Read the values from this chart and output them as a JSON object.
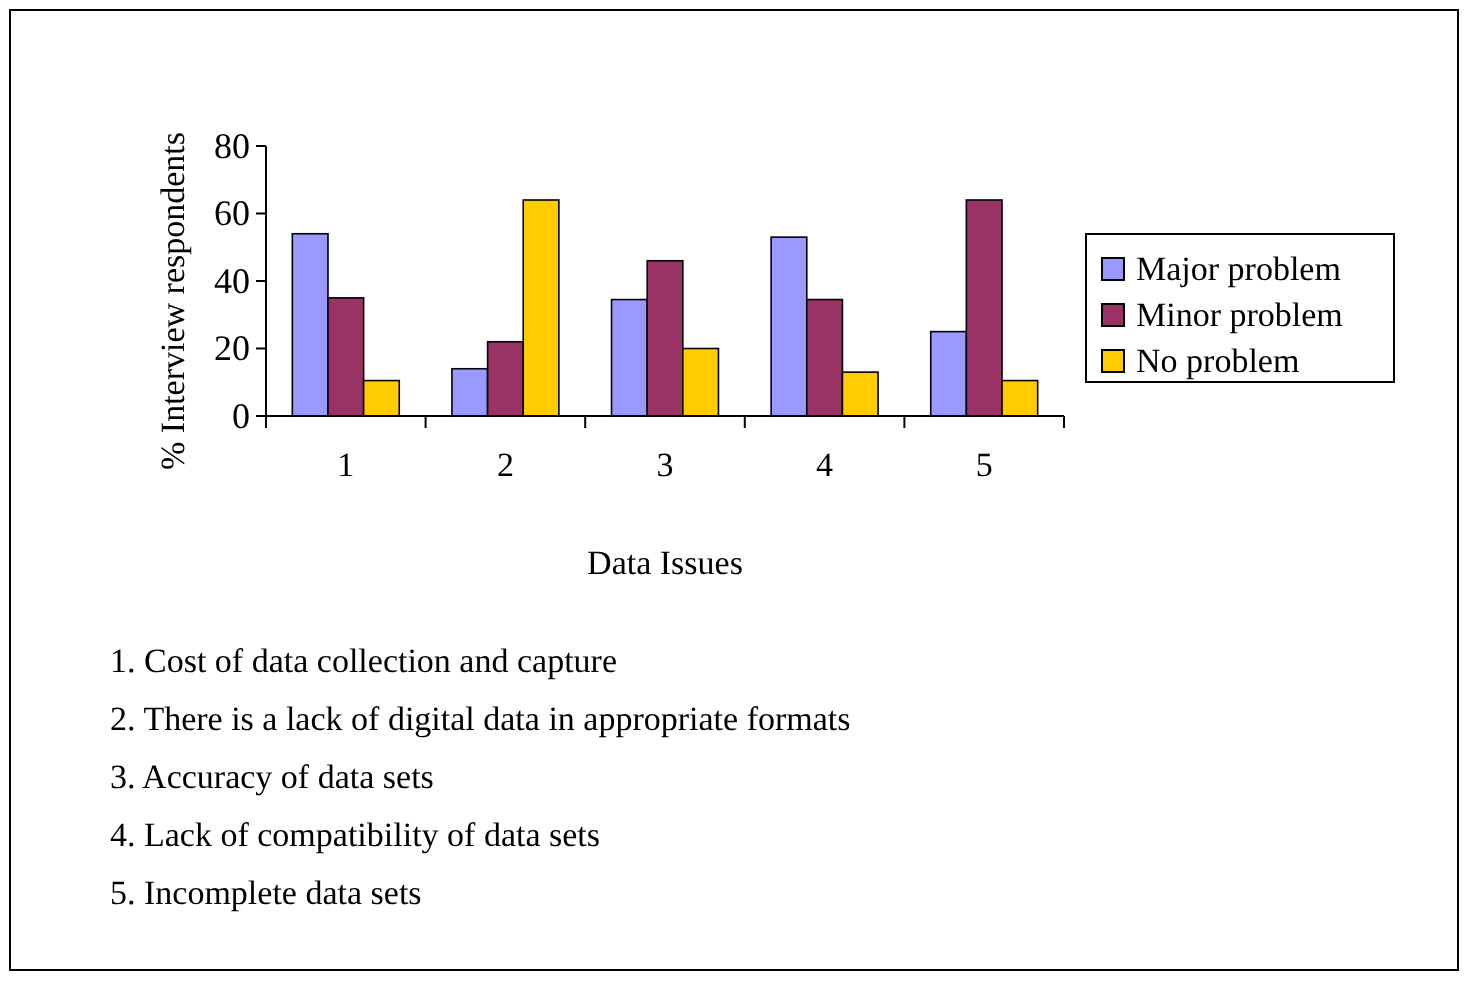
{
  "chart_data": {
    "type": "bar",
    "xlabel": "Data Issues",
    "ylabel": "% Interview respondents",
    "categories": [
      "1",
      "2",
      "3",
      "4",
      "5"
    ],
    "series": [
      {
        "name": "Major problem",
        "color": "#9999ff",
        "values": [
          54,
          14,
          34.5,
          53,
          25
        ]
      },
      {
        "name": "Minor problem",
        "color": "#993366",
        "values": [
          35,
          22,
          46,
          34.5,
          64
        ]
      },
      {
        "name": "No problem",
        "color": "#ffcc00",
        "values": [
          10.5,
          64,
          20,
          13,
          10.5
        ]
      }
    ],
    "ylim": [
      0,
      80
    ],
    "yticks": [
      0,
      20,
      40,
      60,
      80
    ],
    "legend": "right",
    "annotations": [
      "1. Cost of data collection and capture",
      "2. There is a lack of digital data in appropriate formats",
      "3. Accuracy of data sets",
      "4. Lack of compatibility of data sets",
      "5. Incomplete data sets"
    ]
  }
}
